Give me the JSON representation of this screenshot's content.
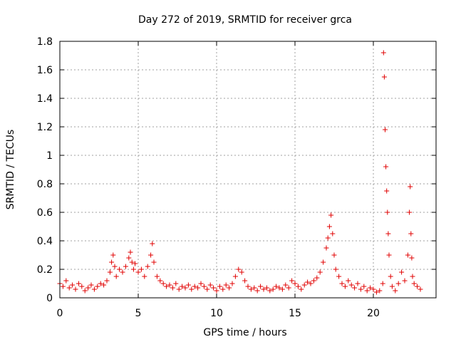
{
  "chart_data": {
    "type": "scatter",
    "title": "Day 272 of 2019, SRMTID for receiver grca",
    "xlabel": "GPS time / hours",
    "ylabel": "SRMTID / TECUs",
    "xlim": [
      0,
      24
    ],
    "ylim": [
      0,
      1.8
    ],
    "xticks": [
      0,
      5,
      10,
      15,
      20
    ],
    "xtick_labels": [
      "0",
      "5",
      "10",
      "15",
      "20"
    ],
    "yticks": [
      0,
      0.2,
      0.4,
      0.6,
      0.8,
      1,
      1.2,
      1.4,
      1.6,
      1.8
    ],
    "ytick_labels": [
      "0",
      "0.2",
      "0.4",
      "0.6",
      "0.8",
      "1",
      "1.2",
      "1.4",
      "1.6",
      "1.8"
    ],
    "grid": true,
    "marker": "+",
    "marker_color": "#e00000",
    "series": [
      {
        "name": "SRMTID",
        "x": [
          0.0,
          0.2,
          0.4,
          0.6,
          0.8,
          1.0,
          1.2,
          1.4,
          1.6,
          1.8,
          2.0,
          2.2,
          2.4,
          2.6,
          2.8,
          3.0,
          3.2,
          3.3,
          3.4,
          3.5,
          3.6,
          3.8,
          4.0,
          4.2,
          4.4,
          4.5,
          4.6,
          4.7,
          4.8,
          5.0,
          5.2,
          5.4,
          5.6,
          5.8,
          5.9,
          6.0,
          6.2,
          6.4,
          6.6,
          6.8,
          7.0,
          7.2,
          7.4,
          7.6,
          7.8,
          8.0,
          8.2,
          8.4,
          8.6,
          8.8,
          9.0,
          9.2,
          9.4,
          9.6,
          9.8,
          10.0,
          10.2,
          10.4,
          10.6,
          10.8,
          11.0,
          11.2,
          11.4,
          11.6,
          11.8,
          12.0,
          12.2,
          12.4,
          12.6,
          12.8,
          13.0,
          13.2,
          13.4,
          13.6,
          13.8,
          14.0,
          14.2,
          14.4,
          14.6,
          14.8,
          15.0,
          15.2,
          15.4,
          15.6,
          15.8,
          16.0,
          16.2,
          16.4,
          16.6,
          16.8,
          17.0,
          17.1,
          17.2,
          17.3,
          17.4,
          17.5,
          17.6,
          17.8,
          18.0,
          18.2,
          18.4,
          18.6,
          18.8,
          19.0,
          19.2,
          19.4,
          19.6,
          19.8,
          20.0,
          20.2,
          20.4,
          20.6,
          20.65,
          20.7,
          20.75,
          20.8,
          20.85,
          20.9,
          20.95,
          21.0,
          21.1,
          21.2,
          21.4,
          21.6,
          21.8,
          22.0,
          22.2,
          22.3,
          22.35,
          22.4,
          22.45,
          22.5,
          22.6,
          22.8,
          23.0
        ],
        "y": [
          0.1,
          0.08,
          0.12,
          0.07,
          0.09,
          0.06,
          0.1,
          0.08,
          0.05,
          0.07,
          0.09,
          0.06,
          0.08,
          0.1,
          0.09,
          0.12,
          0.18,
          0.25,
          0.3,
          0.22,
          0.15,
          0.2,
          0.18,
          0.22,
          0.28,
          0.32,
          0.25,
          0.2,
          0.24,
          0.18,
          0.2,
          0.15,
          0.22,
          0.3,
          0.38,
          0.25,
          0.15,
          0.12,
          0.1,
          0.08,
          0.09,
          0.07,
          0.1,
          0.06,
          0.08,
          0.07,
          0.09,
          0.06,
          0.08,
          0.07,
          0.1,
          0.08,
          0.06,
          0.09,
          0.07,
          0.05,
          0.08,
          0.06,
          0.09,
          0.07,
          0.1,
          0.15,
          0.2,
          0.18,
          0.12,
          0.08,
          0.06,
          0.07,
          0.05,
          0.08,
          0.06,
          0.07,
          0.05,
          0.06,
          0.08,
          0.07,
          0.06,
          0.09,
          0.07,
          0.12,
          0.1,
          0.08,
          0.06,
          0.09,
          0.11,
          0.1,
          0.12,
          0.14,
          0.18,
          0.25,
          0.35,
          0.42,
          0.5,
          0.58,
          0.45,
          0.3,
          0.2,
          0.15,
          0.1,
          0.08,
          0.12,
          0.09,
          0.07,
          0.1,
          0.06,
          0.08,
          0.05,
          0.07,
          0.06,
          0.04,
          0.05,
          0.1,
          1.72,
          1.55,
          1.18,
          0.92,
          0.75,
          0.6,
          0.45,
          0.3,
          0.15,
          0.08,
          0.05,
          0.1,
          0.18,
          0.12,
          0.3,
          0.6,
          0.78,
          0.45,
          0.28,
          0.15,
          0.1,
          0.08,
          0.06
        ]
      }
    ]
  }
}
